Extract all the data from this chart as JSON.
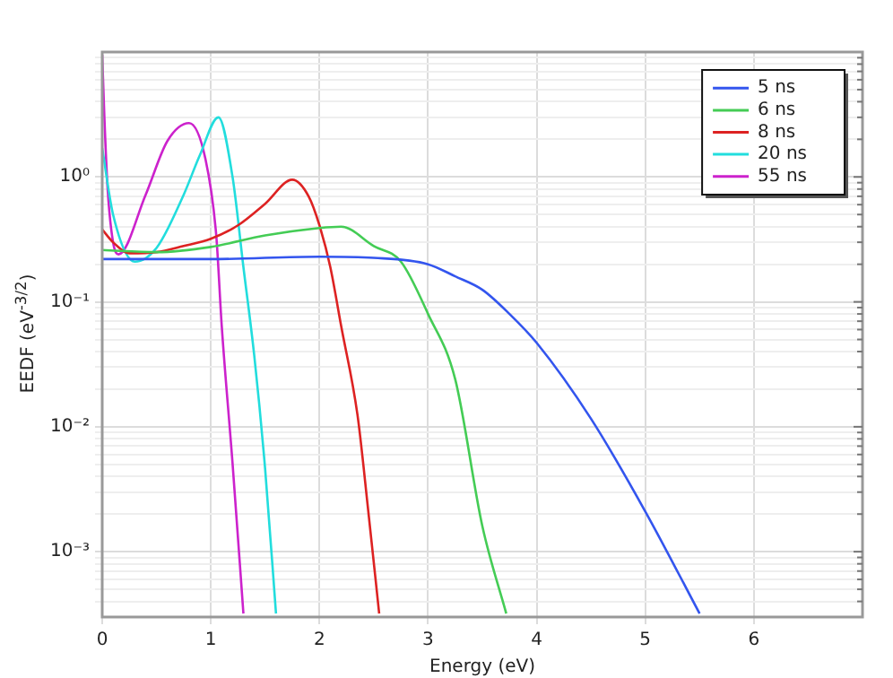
{
  "chart_data": {
    "type": "line",
    "xlabel": "Energy (eV)",
    "ylabel": "EEDF (eV$^{-3/2}$)",
    "log": "y",
    "grid": true,
    "legend": "top right",
    "marker": "none",
    "line_style": "solid",
    "xlim": [
      0,
      7
    ],
    "xticks": [
      0,
      1,
      2,
      3,
      4,
      5,
      6
    ],
    "ylim": [
      0.0003,
      10
    ],
    "yticks": [
      {
        "value": 0.0004,
        "label": null
      },
      {
        "value": 0.0005,
        "label": null
      },
      {
        "value": 0.0006,
        "label": null
      },
      {
        "value": 0.0007,
        "label": null
      },
      {
        "value": 0.0008,
        "label": null
      },
      {
        "value": 0.0009,
        "label": null
      },
      {
        "value": 0.001,
        "label": "10⁻³"
      },
      {
        "value": 0.002,
        "label": null
      },
      {
        "value": 0.003,
        "label": null
      },
      {
        "value": 0.004,
        "label": null
      },
      {
        "value": 0.005,
        "label": null
      },
      {
        "value": 0.006,
        "label": null
      },
      {
        "value": 0.007,
        "label": null
      },
      {
        "value": 0.008,
        "label": null
      },
      {
        "value": 0.009,
        "label": null
      },
      {
        "value": 0.01,
        "label": "10⁻²"
      },
      {
        "value": 0.02,
        "label": null
      },
      {
        "value": 0.03,
        "label": null
      },
      {
        "value": 0.04,
        "label": null
      },
      {
        "value": 0.05,
        "label": null
      },
      {
        "value": 0.06,
        "label": null
      },
      {
        "value": 0.07,
        "label": null
      },
      {
        "value": 0.08,
        "label": null
      },
      {
        "value": 0.09,
        "label": null
      },
      {
        "value": 0.1,
        "label": "10⁻¹"
      },
      {
        "value": 0.2,
        "label": null
      },
      {
        "value": 0.3,
        "label": null
      },
      {
        "value": 0.4,
        "label": null
      },
      {
        "value": 0.5,
        "label": null
      },
      {
        "value": 0.6,
        "label": null
      },
      {
        "value": 0.7,
        "label": null
      },
      {
        "value": 0.8,
        "label": null
      },
      {
        "value": 0.9,
        "label": null
      },
      {
        "value": 1,
        "label": "10⁰"
      },
      {
        "value": 2,
        "label": null
      },
      {
        "value": 3,
        "label": null
      },
      {
        "value": 4,
        "label": null
      },
      {
        "value": 5,
        "label": null
      },
      {
        "value": 6,
        "label": null
      },
      {
        "value": 7,
        "label": null
      },
      {
        "value": 8,
        "label": null
      },
      {
        "value": 9,
        "label": null
      }
    ],
    "series": [
      {
        "name": "5 ns",
        "color": "#3355ee",
        "x": [
          0,
          1,
          2,
          2.5,
          3,
          3.25,
          3.5,
          3.75,
          4,
          4.5,
          5,
          5.5
        ],
        "values": [
          0.22,
          0.22,
          0.23,
          0.225,
          0.2,
          0.16,
          0.125,
          0.08,
          0.047,
          0.0116,
          0.0021,
          0.00032
        ]
      },
      {
        "name": "6 ns",
        "color": "#44cc55",
        "x": [
          0,
          0.5,
          1,
          1.5,
          2,
          2.2,
          2.5,
          2.75,
          3,
          3.25,
          3.5,
          3.72
        ],
        "values": [
          0.26,
          0.25,
          0.275,
          0.34,
          0.39,
          0.4,
          0.28,
          0.21,
          0.08,
          0.024,
          0.0016,
          0.00032
        ]
      },
      {
        "name": "8 ns",
        "color": "#dd2222",
        "x": [
          0,
          0.1,
          0.25,
          0.5,
          0.75,
          1,
          1.25,
          1.5,
          1.75,
          1.9,
          2,
          2.1,
          2.2,
          2.35,
          2.45,
          2.55
        ],
        "values": [
          0.38,
          0.3,
          0.245,
          0.25,
          0.28,
          0.32,
          0.41,
          0.61,
          0.95,
          0.7,
          0.41,
          0.19,
          0.064,
          0.0125,
          0.0021,
          0.00032
        ]
      },
      {
        "name": "20 ns",
        "color": "#22dddd",
        "x": [
          0,
          0.1,
          0.3,
          0.5,
          0.75,
          0.9,
          1.07,
          1.2,
          1.3,
          1.4,
          1.5,
          1.6
        ],
        "values": [
          1.7,
          0.5,
          0.21,
          0.27,
          0.72,
          1.5,
          3.0,
          1.0,
          0.19,
          0.037,
          0.0046,
          0.00032
        ]
      },
      {
        "name": "55 ns",
        "color": "#cc22cc",
        "x": [
          0,
          0.02,
          0.05,
          0.1,
          0.15,
          0.4,
          0.6,
          0.8,
          0.95,
          1.05,
          1.1,
          1.2,
          1.3
        ],
        "values": [
          9.5,
          3.0,
          0.8,
          0.3,
          0.24,
          0.72,
          1.94,
          2.7,
          1.4,
          0.34,
          0.065,
          0.0051,
          0.00032
        ]
      }
    ]
  }
}
